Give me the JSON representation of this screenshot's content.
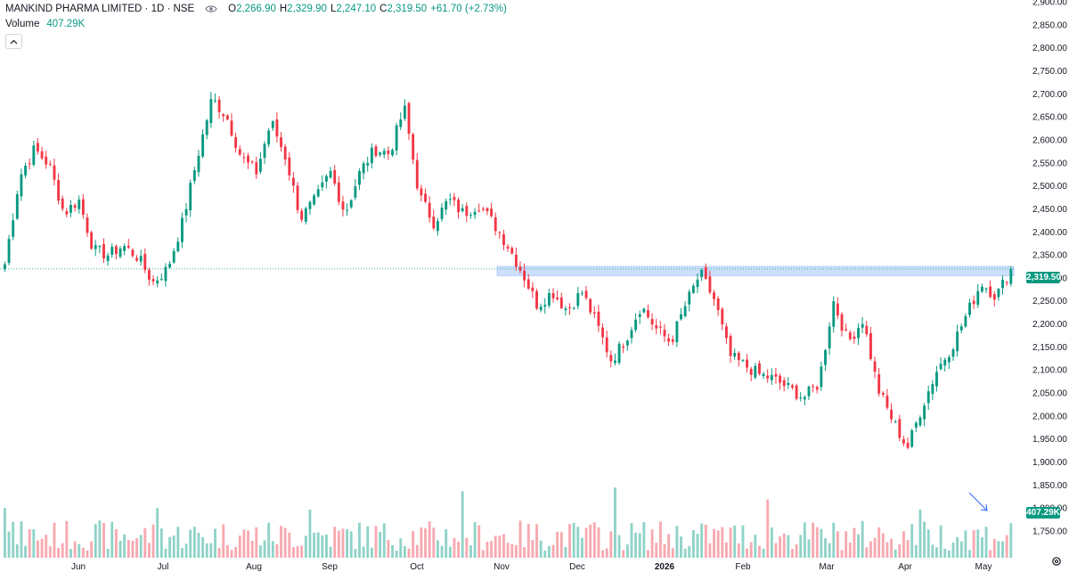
{
  "header": {
    "title": "MANKIND PHARMA LIMITED · 1D · NSE",
    "ohlc": [
      {
        "k": "O",
        "v": "2,266.90"
      },
      {
        "k": "H",
        "v": "2,329.90"
      },
      {
        "k": "L",
        "v": "2,247.10"
      },
      {
        "k": "C",
        "v": "2,319.50"
      }
    ],
    "change": "+61.70 (+2.73%)",
    "volume_label": "Volume",
    "volume_value": "407.29K"
  },
  "price_axis": {
    "ticks": [
      "2,900.00",
      "2,850.00",
      "2,800.00",
      "2,750.00",
      "2,700.00",
      "2,650.00",
      "2,600.00",
      "2,550.00",
      "2,500.00",
      "2,450.00",
      "2,400.00",
      "2,350.00",
      "2,300.00",
      "2,250.00",
      "2,200.00",
      "2,150.00",
      "2,100.00",
      "2,050.00",
      "2,000.00",
      "1,950.00",
      "1,900.00",
      "1,850.00",
      "1,800.00",
      "1,750.00"
    ],
    "last_price_label": "2,319.50",
    "last_volume_label": "407.29K"
  },
  "time_axis": {
    "labels": [
      "Jun",
      "Jul",
      "Aug",
      "Sep",
      "Oct",
      "Nov",
      "Dec",
      "2026",
      "Feb",
      "Mar",
      "Apr",
      "May"
    ],
    "bold_label": "2026"
  },
  "colors": {
    "up": "#089981",
    "down": "#f23645",
    "vol_up": "#8fd3c8",
    "vol_down": "#f7a9b0",
    "zone": "#bbd6fb"
  },
  "icons": [
    "eye-icon",
    "chevron-up-icon",
    "arrow-icon",
    "settings-icon"
  ],
  "chart_data": {
    "type": "candlestick",
    "y_range": [
      1750,
      2900
    ],
    "last_close": 2319.5,
    "resistance_zone": [
      2305,
      2325
    ],
    "close_path": [
      [
        "May",
        2330
      ],
      [
        "May",
        2520
      ],
      [
        "May",
        2580
      ],
      [
        "May",
        2545
      ],
      [
        "Jun",
        2440
      ],
      [
        "Jun",
        2470
      ],
      [
        "Jun",
        2360
      ],
      [
        "Jun",
        2350
      ],
      [
        "Jun",
        2370
      ],
      [
        "Jun",
        2345
      ],
      [
        "Jun",
        2290
      ],
      [
        "Jul",
        2320
      ],
      [
        "Jul",
        2420
      ],
      [
        "Jul",
        2560
      ],
      [
        "Jul",
        2690
      ],
      [
        "Jul",
        2650
      ],
      [
        "Jul",
        2560
      ],
      [
        "Aug",
        2530
      ],
      [
        "Aug",
        2640
      ],
      [
        "Aug",
        2560
      ],
      [
        "Aug",
        2430
      ],
      [
        "Aug",
        2470
      ],
      [
        "Sep",
        2530
      ],
      [
        "Sep",
        2440
      ],
      [
        "Sep",
        2530
      ],
      [
        "Sep",
        2580
      ],
      [
        "Sep",
        2570
      ],
      [
        "Sep",
        2670
      ],
      [
        "Oct",
        2480
      ],
      [
        "Oct",
        2420
      ],
      [
        "Oct",
        2470
      ],
      [
        "Oct",
        2440
      ],
      [
        "Oct",
        2460
      ],
      [
        "Oct",
        2420
      ],
      [
        "Oct",
        2370
      ],
      [
        "Nov",
        2310
      ],
      [
        "Nov",
        2240
      ],
      [
        "Nov",
        2270
      ],
      [
        "Nov",
        2230
      ],
      [
        "Nov",
        2270
      ],
      [
        "Nov",
        2200
      ],
      [
        "Dec",
        2120
      ],
      [
        "Dec",
        2170
      ],
      [
        "Dec",
        2240
      ],
      [
        "Dec",
        2190
      ],
      [
        "Dec",
        2160
      ],
      [
        "2026",
        2240
      ],
      [
        "2026",
        2310
      ],
      [
        "2026",
        2250
      ],
      [
        "2026",
        2130
      ],
      [
        "2026",
        2110
      ],
      [
        "Feb",
        2090
      ],
      [
        "Feb",
        2080
      ],
      [
        "Feb",
        2060
      ],
      [
        "Feb",
        2040
      ],
      [
        "Feb",
        2070
      ],
      [
        "Mar",
        2250
      ],
      [
        "Mar",
        2160
      ],
      [
        "Mar",
        2210
      ],
      [
        "Mar",
        2060
      ],
      [
        "Mar",
        1990
      ],
      [
        "Mar",
        1930
      ],
      [
        "Apr",
        2020
      ],
      [
        "Apr",
        2100
      ],
      [
        "Apr",
        2150
      ],
      [
        "Apr",
        2220
      ],
      [
        "Apr",
        2290
      ],
      [
        "Apr",
        2260
      ],
      [
        "May",
        2319.5
      ]
    ],
    "notes": "Daily OHLC candles; closes approximated from price axis. Volume histogram at bottom; last volume 407.29K."
  }
}
